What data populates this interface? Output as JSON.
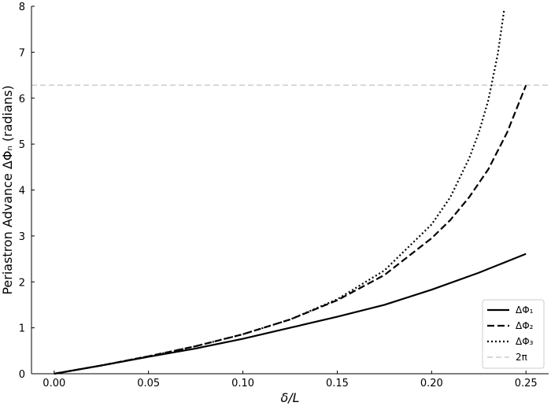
{
  "chart_data": {
    "type": "line",
    "title": "",
    "xlabel": "δ/L",
    "ylabel": "Periastron Advance ΔΦₙ (radians)",
    "xlim": [
      -0.012,
      0.262
    ],
    "ylim": [
      0,
      8
    ],
    "x_ticks": [
      0.0,
      0.05,
      0.1,
      0.15,
      0.2,
      0.25
    ],
    "x_tick_labels": [
      "0.00",
      "0.05",
      "0.10",
      "0.15",
      "0.20",
      "0.25"
    ],
    "y_ticks": [
      0,
      1,
      2,
      3,
      4,
      5,
      6,
      7,
      8
    ],
    "y_tick_labels": [
      "0",
      "1",
      "2",
      "3",
      "4",
      "5",
      "6",
      "7",
      "8"
    ],
    "grid": false,
    "legend_position": "lower-right",
    "series": [
      {
        "name": "ΔΦ₁",
        "style": "solid",
        "color": "#000000",
        "x": [
          0,
          0.025,
          0.05,
          0.075,
          0.1,
          0.125,
          0.15,
          0.175,
          0.2,
          0.225,
          0.25
        ],
        "y": [
          0,
          0.18,
          0.37,
          0.55,
          0.76,
          1.0,
          1.24,
          1.5,
          1.83,
          2.2,
          2.61
        ]
      },
      {
        "name": "ΔΦ₂",
        "style": "dashed",
        "color": "#000000",
        "x": [
          0,
          0.025,
          0.05,
          0.075,
          0.1,
          0.125,
          0.15,
          0.175,
          0.2,
          0.21,
          0.22,
          0.23,
          0.24,
          0.25
        ],
        "y": [
          0,
          0.18,
          0.38,
          0.6,
          0.86,
          1.18,
          1.6,
          2.15,
          2.95,
          3.35,
          3.85,
          4.45,
          5.25,
          6.28
        ]
      },
      {
        "name": "ΔΦ₃",
        "style": "dotted",
        "color": "#000000",
        "x": [
          0,
          0.025,
          0.05,
          0.075,
          0.1,
          0.125,
          0.15,
          0.175,
          0.2,
          0.21,
          0.22,
          0.225,
          0.23,
          0.235,
          0.2385
        ],
        "y": [
          0,
          0.18,
          0.38,
          0.6,
          0.86,
          1.18,
          1.62,
          2.25,
          3.25,
          3.85,
          4.7,
          5.25,
          5.95,
          6.95,
          7.95
        ]
      },
      {
        "name": "2π",
        "style": "dashed-reference",
        "color": "#cccccc",
        "y_constant": 6.283
      }
    ]
  }
}
